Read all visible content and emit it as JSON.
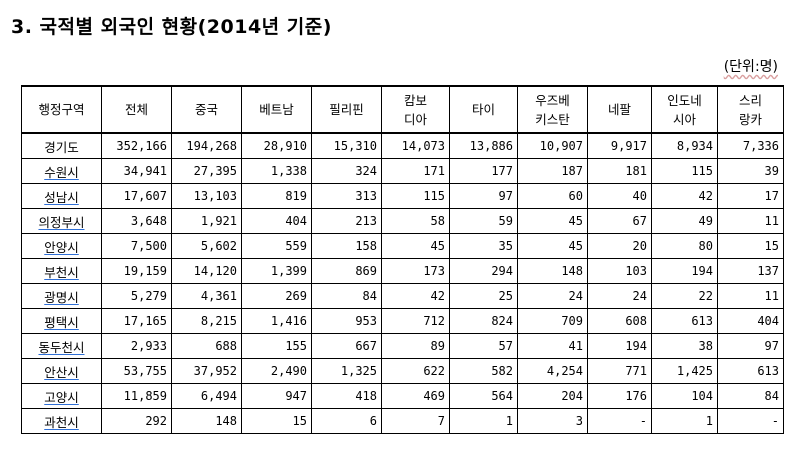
{
  "title": "3. 국적별 외국인 현황(2014년 기준)",
  "unit_note": "(단위:명)",
  "headers": [
    {
      "lines": [
        "행정구역"
      ]
    },
    {
      "lines": [
        "전체"
      ]
    },
    {
      "lines": [
        "중국"
      ]
    },
    {
      "lines": [
        "베트남"
      ]
    },
    {
      "lines": [
        "필리핀"
      ]
    },
    {
      "lines": [
        "캄보",
        "디아"
      ]
    },
    {
      "lines": [
        "타이"
      ]
    },
    {
      "lines": [
        "우즈베",
        "키스탄"
      ]
    },
    {
      "lines": [
        "네팔"
      ]
    },
    {
      "lines": [
        "인도네",
        "시아"
      ]
    },
    {
      "lines": [
        "스리",
        "랑카"
      ]
    }
  ],
  "rows": [
    {
      "region": "경기도",
      "values": [
        "352,166",
        "194,268",
        "28,910",
        "15,310",
        "14,073",
        "13,886",
        "10,907",
        "9,917",
        "8,934",
        "7,336"
      ]
    },
    {
      "region": "수원시",
      "values": [
        "34,941",
        "27,395",
        "1,338",
        "324",
        "171",
        "177",
        "187",
        "181",
        "115",
        "39"
      ]
    },
    {
      "region": "성남시",
      "values": [
        "17,607",
        "13,103",
        "819",
        "313",
        "115",
        "97",
        "60",
        "40",
        "42",
        "17"
      ]
    },
    {
      "region": "의정부시",
      "values": [
        "3,648",
        "1,921",
        "404",
        "213",
        "58",
        "59",
        "45",
        "67",
        "49",
        "11"
      ]
    },
    {
      "region": "안양시",
      "values": [
        "7,500",
        "5,602",
        "559",
        "158",
        "45",
        "35",
        "45",
        "20",
        "80",
        "15"
      ]
    },
    {
      "region": "부천시",
      "values": [
        "19,159",
        "14,120",
        "1,399",
        "869",
        "173",
        "294",
        "148",
        "103",
        "194",
        "137"
      ]
    },
    {
      "region": "광명시",
      "values": [
        "5,279",
        "4,361",
        "269",
        "84",
        "42",
        "25",
        "24",
        "24",
        "22",
        "11"
      ]
    },
    {
      "region": "평택시",
      "values": [
        "17,165",
        "8,215",
        "1,416",
        "953",
        "712",
        "824",
        "709",
        "608",
        "613",
        "404"
      ]
    },
    {
      "region": "동두천시",
      "values": [
        "2,933",
        "688",
        "155",
        "667",
        "89",
        "57",
        "41",
        "194",
        "38",
        "97"
      ]
    },
    {
      "region": "안산시",
      "values": [
        "53,755",
        "37,952",
        "2,490",
        "1,325",
        "622",
        "582",
        "4,254",
        "771",
        "1,425",
        "613"
      ]
    },
    {
      "region": "고양시",
      "values": [
        "11,859",
        "6,494",
        "947",
        "418",
        "469",
        "564",
        "204",
        "176",
        "104",
        "84"
      ]
    },
    {
      "region": "과천시",
      "values": [
        "292",
        "148",
        "15",
        "6",
        "7",
        "1",
        "3",
        "-",
        "1",
        "-"
      ]
    }
  ]
}
